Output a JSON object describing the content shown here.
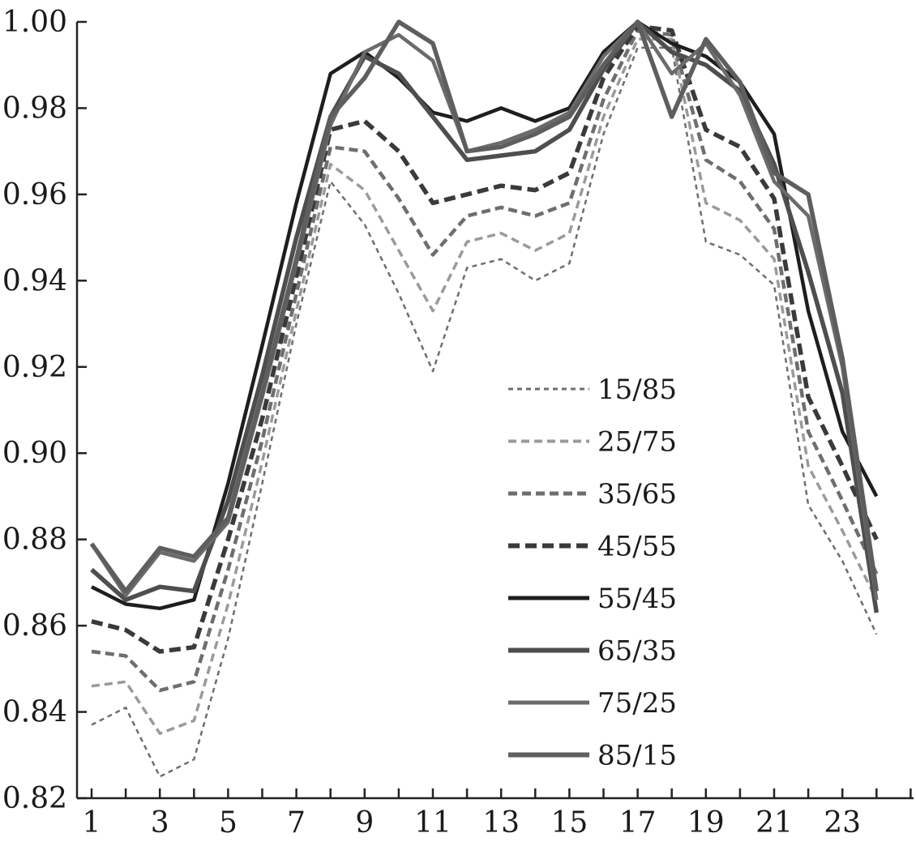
{
  "chart_data": {
    "type": "line",
    "title": "",
    "xlabel": "",
    "ylabel": "",
    "ylim": [
      0.82,
      1.0
    ],
    "xlim": [
      1,
      24
    ],
    "grid": false,
    "legend_position": "center-right",
    "y_ticks": [
      "0.82",
      "0.84",
      "0.86",
      "0.88",
      "0.90",
      "0.92",
      "0.94",
      "0.96",
      "0.98",
      "1.00"
    ],
    "x_ticks": [
      "1",
      "3",
      "5",
      "7",
      "9",
      "11",
      "13",
      "15",
      "17",
      "19",
      "21",
      "23"
    ],
    "x": [
      1,
      2,
      3,
      4,
      5,
      6,
      7,
      8,
      9,
      10,
      11,
      12,
      13,
      14,
      15,
      16,
      17,
      18,
      19,
      20,
      21,
      22,
      23,
      24
    ],
    "series": [
      {
        "name": "15/85",
        "color": "#6e6e6e",
        "dash": "6,5",
        "width": 2.5,
        "values": [
          0.837,
          0.841,
          0.825,
          0.829,
          0.857,
          0.893,
          0.93,
          0.963,
          0.953,
          0.937,
          0.919,
          0.943,
          0.945,
          0.94,
          0.944,
          0.974,
          0.994,
          0.994,
          0.949,
          0.946,
          0.939,
          0.888,
          0.875,
          0.858
        ]
      },
      {
        "name": "25/75",
        "color": "#9a9a9a",
        "dash": "10,6",
        "width": 3.5,
        "values": [
          0.846,
          0.847,
          0.835,
          0.838,
          0.865,
          0.898,
          0.933,
          0.967,
          0.961,
          0.947,
          0.933,
          0.949,
          0.951,
          0.947,
          0.951,
          0.978,
          0.996,
          0.996,
          0.958,
          0.954,
          0.945,
          0.897,
          0.882,
          0.866
        ]
      },
      {
        "name": "35/65",
        "color": "#6e6e6e",
        "dash": "11,6",
        "width": 4.5,
        "values": [
          0.854,
          0.853,
          0.845,
          0.847,
          0.873,
          0.903,
          0.937,
          0.971,
          0.97,
          0.959,
          0.946,
          0.955,
          0.957,
          0.955,
          0.958,
          0.982,
          0.998,
          0.997,
          0.968,
          0.963,
          0.952,
          0.905,
          0.889,
          0.872
        ]
      },
      {
        "name": "45/55",
        "color": "#3a3a3a",
        "dash": "14,7",
        "width": 5.5,
        "values": [
          0.861,
          0.859,
          0.854,
          0.855,
          0.88,
          0.908,
          0.941,
          0.975,
          0.977,
          0.97,
          0.958,
          0.96,
          0.962,
          0.961,
          0.965,
          0.987,
          0.999,
          0.998,
          0.975,
          0.971,
          0.959,
          0.913,
          0.897,
          0.88
        ]
      },
      {
        "name": "55/45",
        "color": "#1e1e1e",
        "dash": "",
        "width": 4.5,
        "values": [
          0.869,
          0.865,
          0.864,
          0.866,
          0.893,
          0.925,
          0.958,
          0.988,
          0.993,
          0.987,
          0.979,
          0.977,
          0.98,
          0.977,
          0.98,
          0.993,
          1.0,
          0.995,
          0.992,
          0.986,
          0.974,
          0.933,
          0.905,
          0.89
        ]
      },
      {
        "name": "65/35",
        "color": "#4e4e4e",
        "dash": "",
        "width": 5.5,
        "values": [
          0.873,
          0.866,
          0.869,
          0.868,
          0.889,
          0.918,
          0.95,
          0.978,
          0.992,
          0.988,
          0.978,
          0.968,
          0.969,
          0.97,
          0.975,
          0.989,
          1.0,
          0.993,
          0.99,
          0.984,
          0.967,
          0.942,
          0.914,
          0.863
        ]
      },
      {
        "name": "75/25",
        "color": "#6b6b6b",
        "dash": "",
        "width": 4.5,
        "values": [
          0.879,
          0.867,
          0.877,
          0.875,
          0.884,
          0.913,
          0.944,
          0.976,
          0.993,
          0.997,
          0.991,
          0.97,
          0.972,
          0.975,
          0.979,
          0.992,
          1.0,
          0.988,
          0.995,
          0.983,
          0.963,
          0.955,
          0.92,
          0.866
        ]
      },
      {
        "name": "85/15",
        "color": "#5e5e5e",
        "dash": "",
        "width": 5.5,
        "values": [
          0.879,
          0.868,
          0.878,
          0.876,
          0.885,
          0.914,
          0.945,
          0.978,
          0.987,
          1.0,
          0.995,
          0.97,
          0.971,
          0.974,
          0.978,
          0.99,
          1.0,
          0.978,
          0.996,
          0.986,
          0.965,
          0.96,
          0.922,
          0.868
        ]
      }
    ]
  }
}
